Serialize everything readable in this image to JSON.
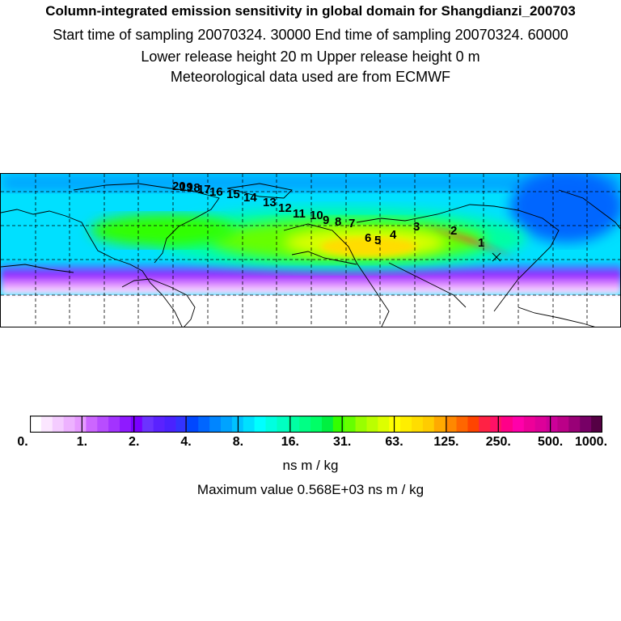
{
  "header": {
    "title": "Column-integrated emission sensitivity in global domain for Shangdianzi_200703",
    "sampling": "Start time of sampling 20070324. 30000     End time of sampling 20070324. 60000",
    "release": "Lower release height   20 m           Upper release height    0 m",
    "meteo": "Meteorological data used are from ECMWF"
  },
  "map": {
    "trajectory_labels": [
      "1",
      "2",
      "3",
      "4",
      "5",
      "6",
      "7",
      "8",
      "9",
      "10",
      "11",
      "12",
      "13",
      "14",
      "15",
      "16",
      "17",
      "18",
      "19",
      "20"
    ]
  },
  "colorbar": {
    "tick_labels": [
      "0.",
      "1.",
      "2.",
      "4.",
      "8.",
      "16.",
      "31.",
      "63.",
      "125.",
      "250.",
      "500.",
      "1000."
    ],
    "colors": [
      "#ffffff",
      "#fbe6ff",
      "#f4ccff",
      "#edb2ff",
      "#e699ff",
      "#cc66ff",
      "#b84dff",
      "#a333ff",
      "#8f1aff",
      "#7a00ff",
      "#6b33ff",
      "#5a22ff",
      "#4a22ff",
      "#3333ff",
      "#0047ff",
      "#0066ff",
      "#0085ff",
      "#00a3ff",
      "#00c2ff",
      "#00e0ff",
      "#00ffff",
      "#00ffe0",
      "#00ffc2",
      "#00ffa3",
      "#00ff85",
      "#00ff66",
      "#00f040",
      "#33ff00",
      "#66ff00",
      "#99ff00",
      "#bbff00",
      "#ddff00",
      "#ffff00",
      "#ffee00",
      "#ffdd00",
      "#ffcc00",
      "#ffaa00",
      "#ff8800",
      "#ff6600",
      "#ff4400",
      "#ff2244",
      "#ff1166",
      "#ff0088",
      "#ff00aa",
      "#ee0099",
      "#dd0099",
      "#cc0099",
      "#bb0088",
      "#990077",
      "#770066",
      "#550044"
    ]
  },
  "unit": "ns m / kg",
  "max_value": "Maximum value  0.568E+03 ns m / kg"
}
